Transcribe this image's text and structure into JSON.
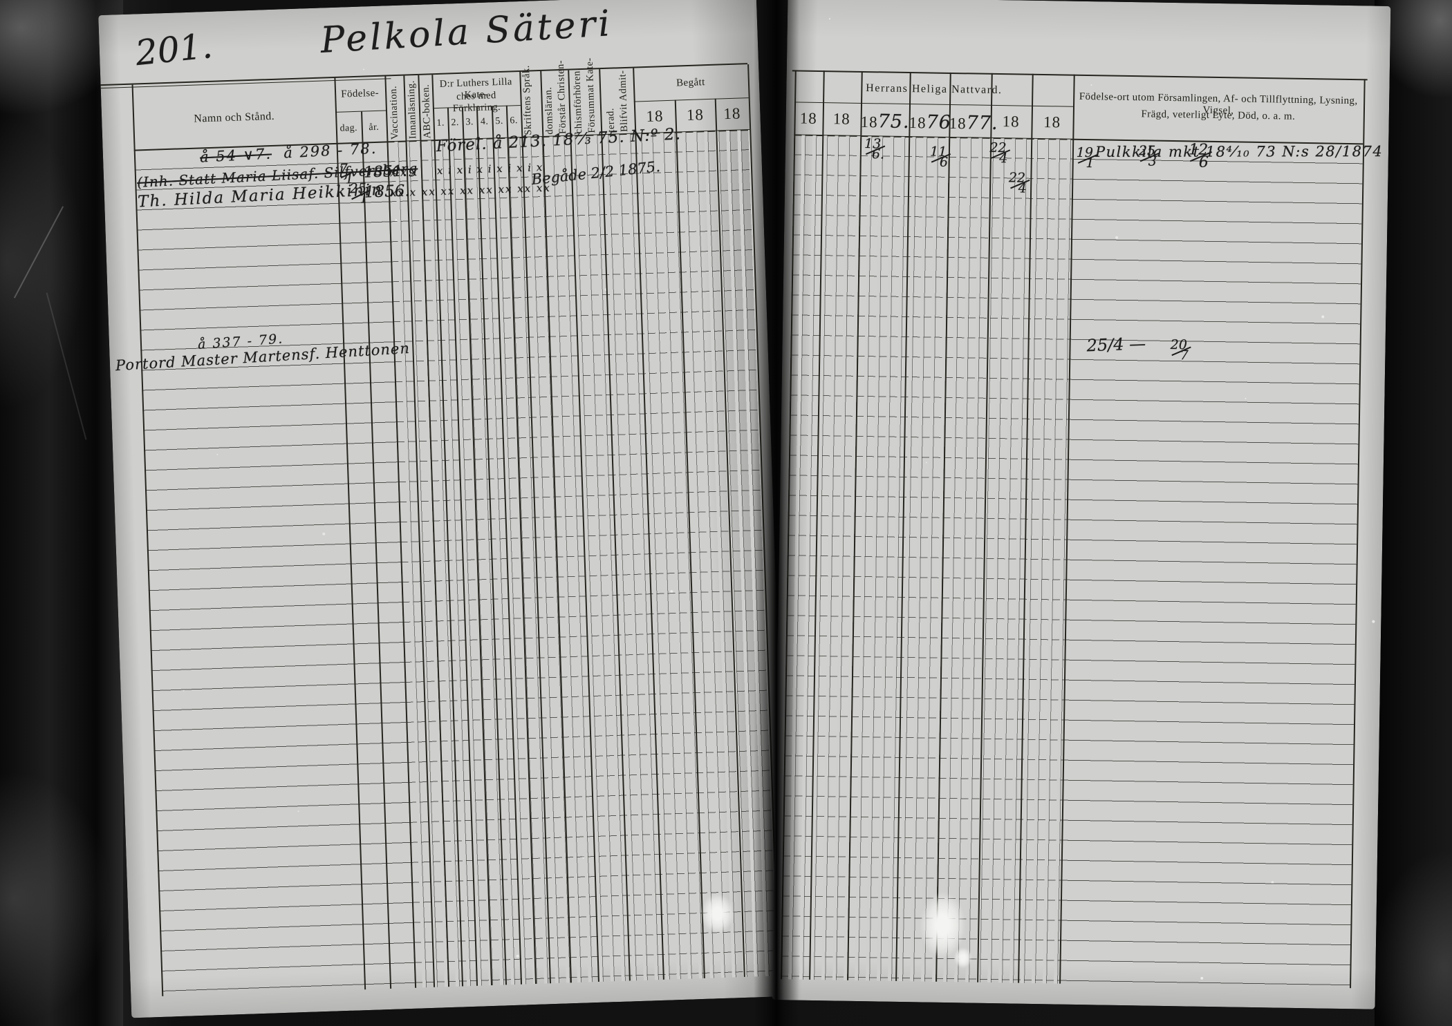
{
  "page": {
    "number": "201.",
    "title": "Pelkola Säteri"
  },
  "left_table": {
    "namn_header": "Namn och Stånd.",
    "fodelse_header": "Födelse-",
    "dag": "dag.",
    "ar": "år.",
    "vaccination": "Vaccination.",
    "innanlasning": "Innanläsning.",
    "abc": "ABC-boken.",
    "katekes_line1": "D:r Luthers Lilla Kate-",
    "katekes_line2": "ches med Förklaring.",
    "katekes_cols": [
      "1.",
      "2.",
      "3.",
      "4.",
      "5.",
      "6."
    ],
    "skriftens_1": "Skriftens",
    "skriftens_2": "Språk.",
    "forstar_1": "Förstår Christen-",
    "forstar_2": "domsläran.",
    "forsummat_1": "Försummat Kate-",
    "forsummat_2": "chismförhören.",
    "blifvit_1": "Blifvit Admit-",
    "blifvit_2": "terad.",
    "begatt": "Begått",
    "year_cells": [
      "18",
      "18",
      "18"
    ]
  },
  "right_table": {
    "nattvard_header": "Herrans Heliga Nattvard.",
    "year_cells": [
      {
        "printed": "18",
        "written": ""
      },
      {
        "printed": "18",
        "written": ""
      },
      {
        "printed": "18",
        "written": "75."
      },
      {
        "printed": "18",
        "written": "76"
      },
      {
        "printed": "18",
        "written": "77."
      },
      {
        "printed": "18",
        "written": ""
      },
      {
        "printed": "18",
        "written": ""
      }
    ],
    "remarks_line1": "Födelse-ort utom Församlingen, Af- och Tillflyttning, Lysning, Vigsel,",
    "remarks_line2": "Frägd, veterligt Lyte, Död, o. a. m."
  },
  "entries": {
    "row1_annotation_struck": "å 54 ∨7.",
    "row1_annotation": "å 298 - 78.",
    "row1_katekes_note": "Förel. å 213. 18⁷⁄₃ 75. N:º 2.",
    "row1_name": "(Inh. Statt Maria Liisaf. Silfversberg",
    "row1_dag": "7/1",
    "row1_ar": "1851.",
    "row1_vacc_marks": "xxx",
    "row1_katekes_marks": "x i x i x i x i x i x",
    "row1_hhn_1875": "13/6.",
    "row1_hhn_1876": "11/6",
    "row1_hhn_1877": "22/4",
    "row1_hhn_18a": "19/1",
    "row1_hhn_18b": "25/3",
    "row1_hhn_18c": "12/6",
    "row1_remark": "Pulkkila mkt 18⁴⁄₁₀ 73 N:s 28/1874",
    "row2_name": "Th. Hilda Maria Heikkinin",
    "row2_dag": "25/1",
    "row2_ar": "1856.",
    "row2_marks": "xx x  xx xx xx xx xx  xx xx",
    "row2_note": "Begåde 2/2 1875.",
    "row2_hhn_1877": "22/4",
    "row3_annotation": "å 337 - 79.",
    "row3_name": "Portord Master Martensf. Henttonen",
    "row3_hhn_18b": "20/7",
    "row3_remark": "25/4 —"
  }
}
